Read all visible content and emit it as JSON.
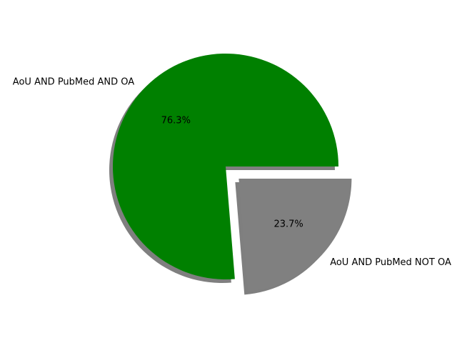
{
  "chart_data": {
    "type": "pie",
    "title": "",
    "slices": [
      {
        "label": "AoU AND PubMed AND OA",
        "value": 76.3,
        "pct_label": "76.3%",
        "color": "#008000",
        "exploded": false
      },
      {
        "label": "AoU AND PubMed NOT OA",
        "value": 23.7,
        "pct_label": "23.7%",
        "color": "#808080",
        "exploded": true
      }
    ],
    "start_angle": 0,
    "direction": "counterclockwise",
    "shadow": true,
    "legend": "none"
  }
}
